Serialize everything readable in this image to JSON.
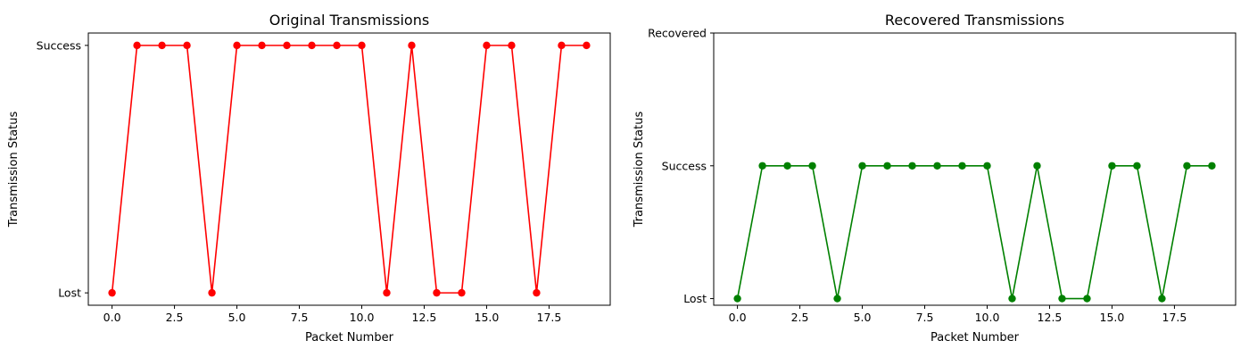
{
  "chart_data": [
    {
      "type": "line",
      "title": "Original Transmissions",
      "xlabel": "Packet Number",
      "ylabel": "Transmission Status",
      "x": [
        0,
        1,
        2,
        3,
        4,
        5,
        6,
        7,
        8,
        9,
        10,
        11,
        12,
        13,
        14,
        15,
        16,
        17,
        18,
        19
      ],
      "series": [
        {
          "values": [
            0,
            1,
            1,
            1,
            0,
            1,
            1,
            1,
            1,
            1,
            1,
            0,
            1,
            0,
            0,
            1,
            1,
            0,
            1,
            1
          ],
          "color": "#ff0000",
          "marker": "circle"
        }
      ],
      "xlim": [
        -0.95,
        19.95
      ],
      "ylim": [
        -0.05,
        1.05
      ],
      "xticks": [
        0,
        2.5,
        5,
        7.5,
        10,
        12.5,
        15,
        17.5
      ],
      "xticklabels": [
        "0.0",
        "2.5",
        "5.0",
        "7.5",
        "10.0",
        "12.5",
        "15.0",
        "17.5"
      ],
      "yticks": [
        0,
        1
      ],
      "yticklabels": [
        "Lost",
        "Success"
      ],
      "grid": false
    },
    {
      "type": "line",
      "title": "Recovered Transmissions",
      "xlabel": "Packet Number",
      "ylabel": "Transmission Status",
      "x": [
        0,
        1,
        2,
        3,
        4,
        5,
        6,
        7,
        8,
        9,
        10,
        11,
        12,
        13,
        14,
        15,
        16,
        17,
        18,
        19
      ],
      "series": [
        {
          "values": [
            0,
            1,
            1,
            1,
            0,
            1,
            1,
            1,
            1,
            1,
            1,
            0,
            1,
            0,
            0,
            1,
            1,
            0,
            1,
            1
          ],
          "color": "#008000",
          "marker": "circle"
        }
      ],
      "xlim": [
        -0.95,
        19.95
      ],
      "ylim": [
        -0.05,
        2
      ],
      "xticks": [
        0,
        2.5,
        5,
        7.5,
        10,
        12.5,
        15,
        17.5
      ],
      "xticklabels": [
        "0.0",
        "2.5",
        "5.0",
        "7.5",
        "10.0",
        "12.5",
        "15.0",
        "17.5"
      ],
      "yticks": [
        0,
        1,
        2
      ],
      "yticklabels": [
        "Lost",
        "Success",
        "Recovered"
      ],
      "grid": false
    }
  ]
}
